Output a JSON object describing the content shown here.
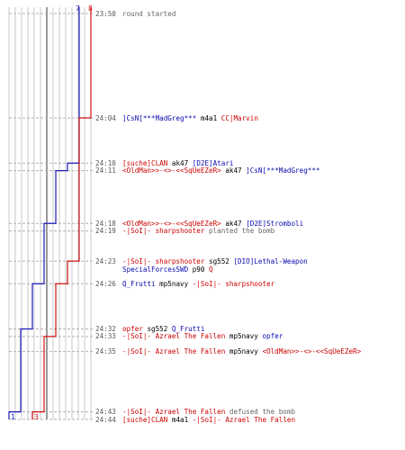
{
  "colors": {
    "team_blue": "#1a1ab8",
    "team_red": "#d01010",
    "grid": "#c8c8c8",
    "grid_dark": "#808080",
    "dash": "#b0b0b0",
    "timestamp": "#555555",
    "neutral": "#000000",
    "action": "#666666"
  },
  "chart_data": {
    "type": "line",
    "title": "",
    "xlabel": "",
    "ylabel": "",
    "series": [
      {
        "name": "",
        "color": "#1a1ab8",
        "start_label": "7",
        "end_label": "1",
        "points": [
          {
            "t": "23:50",
            "v": 7
          },
          {
            "t": "24:10",
            "v": 6
          },
          {
            "t": "24:11",
            "v": 5
          },
          {
            "t": "24:18",
            "v": 4
          },
          {
            "t": "24:26",
            "v": 3
          },
          {
            "t": "24:32",
            "v": 2
          },
          {
            "t": "24:43",
            "v": 1
          }
        ]
      },
      {
        "name": "",
        "color": "#d01010",
        "start_label": "8",
        "end_label": "3",
        "points": [
          {
            "t": "23:50",
            "v": 8
          },
          {
            "t": "24:04",
            "v": 7
          },
          {
            "t": "24:23",
            "v": 6
          },
          {
            "t": "24:26",
            "v": 5
          },
          {
            "t": "24:33",
            "v": 4
          },
          {
            "t": "24:43",
            "v": 3
          }
        ]
      }
    ]
  },
  "events": [
    {
      "time": "23:50",
      "parts": [
        {
          "text": "round started",
          "style": "gray"
        }
      ]
    },
    {
      "time": "24:04",
      "parts": [
        {
          "text": "]CsN[***MadGreg***",
          "style": "blue"
        },
        {
          "text": "m4a1",
          "style": "black"
        },
        {
          "text": "CC|Marvin",
          "style": "red"
        }
      ]
    },
    {
      "time": "24:10",
      "parts": [
        {
          "text": "[suche]CLAN",
          "style": "red"
        },
        {
          "text": "ak47",
          "style": "black"
        },
        {
          "text": "[D2E]Atari",
          "style": "blue"
        }
      ]
    },
    {
      "time": "24:11",
      "parts": [
        {
          "text": "<OldMan>>-<>-<<SqUeEZeR>",
          "style": "red"
        },
        {
          "text": "ak47",
          "style": "black"
        },
        {
          "text": "]CsN[***MadGreg***",
          "style": "blue"
        }
      ]
    },
    {
      "time": "24:18",
      "parts": [
        {
          "text": "<OldMan>>-<>-<<SqUeEZeR>",
          "style": "red"
        },
        {
          "text": "ak47",
          "style": "black"
        },
        {
          "text": "[D2E]Stromboli",
          "style": "blue"
        }
      ]
    },
    {
      "time": "24:19",
      "parts": [
        {
          "text": "-|SoI|- sharpshooter",
          "style": "red"
        },
        {
          "text": "planted the bomb",
          "style": "gray"
        }
      ]
    },
    {
      "time": "24:23",
      "parts": [
        {
          "text": "-|SoI|- sharpshooter",
          "style": "red"
        },
        {
          "text": "sg552",
          "style": "black"
        },
        {
          "text": "[DIO]Lethal-Weapon",
          "style": "blue"
        }
      ]
    },
    {
      "time": "",
      "parts": [
        {
          "text": "SpecialForcesSWD",
          "style": "blue"
        },
        {
          "text": "p90",
          "style": "black"
        },
        {
          "text": "Q",
          "style": "red"
        }
      ]
    },
    {
      "time": "24:26",
      "parts": [
        {
          "text": "Q_Frutti",
          "style": "blue"
        },
        {
          "text": "mp5navy",
          "style": "black"
        },
        {
          "text": "-|SoI|- sharpshooter",
          "style": "red"
        }
      ]
    },
    {
      "time": "24:32",
      "parts": [
        {
          "text": "opfer",
          "style": "red"
        },
        {
          "text": "sg552",
          "style": "black"
        },
        {
          "text": "Q_Frutti",
          "style": "blue"
        }
      ]
    },
    {
      "time": "24:33",
      "parts": [
        {
          "text": "-|SoI|- Azrael The Fallen",
          "style": "red"
        },
        {
          "text": "mp5navy",
          "style": "black"
        },
        {
          "text": "opfer",
          "style": "blue"
        }
      ]
    },
    {
      "time": "24:35",
      "parts": [
        {
          "text": "-|SoI|- Azrael The Fallen",
          "style": "red"
        },
        {
          "text": "mp5navy",
          "style": "black"
        },
        {
          "text": "<OldMan>>-<>-<<SqUeEZeR>",
          "style": "red"
        }
      ]
    },
    {
      "time": "24:43",
      "parts": [
        {
          "text": "-|SoI|- Azrael The Fallen",
          "style": "red"
        },
        {
          "text": "defused the bomb",
          "style": "gray"
        }
      ]
    },
    {
      "time": "24:44",
      "parts": [
        {
          "text": "[suche]CLAN",
          "style": "red"
        },
        {
          "text": "m4a1",
          "style": "black"
        },
        {
          "text": "-|SoI|- Azrael The Fallen",
          "style": "red"
        }
      ]
    }
  ]
}
